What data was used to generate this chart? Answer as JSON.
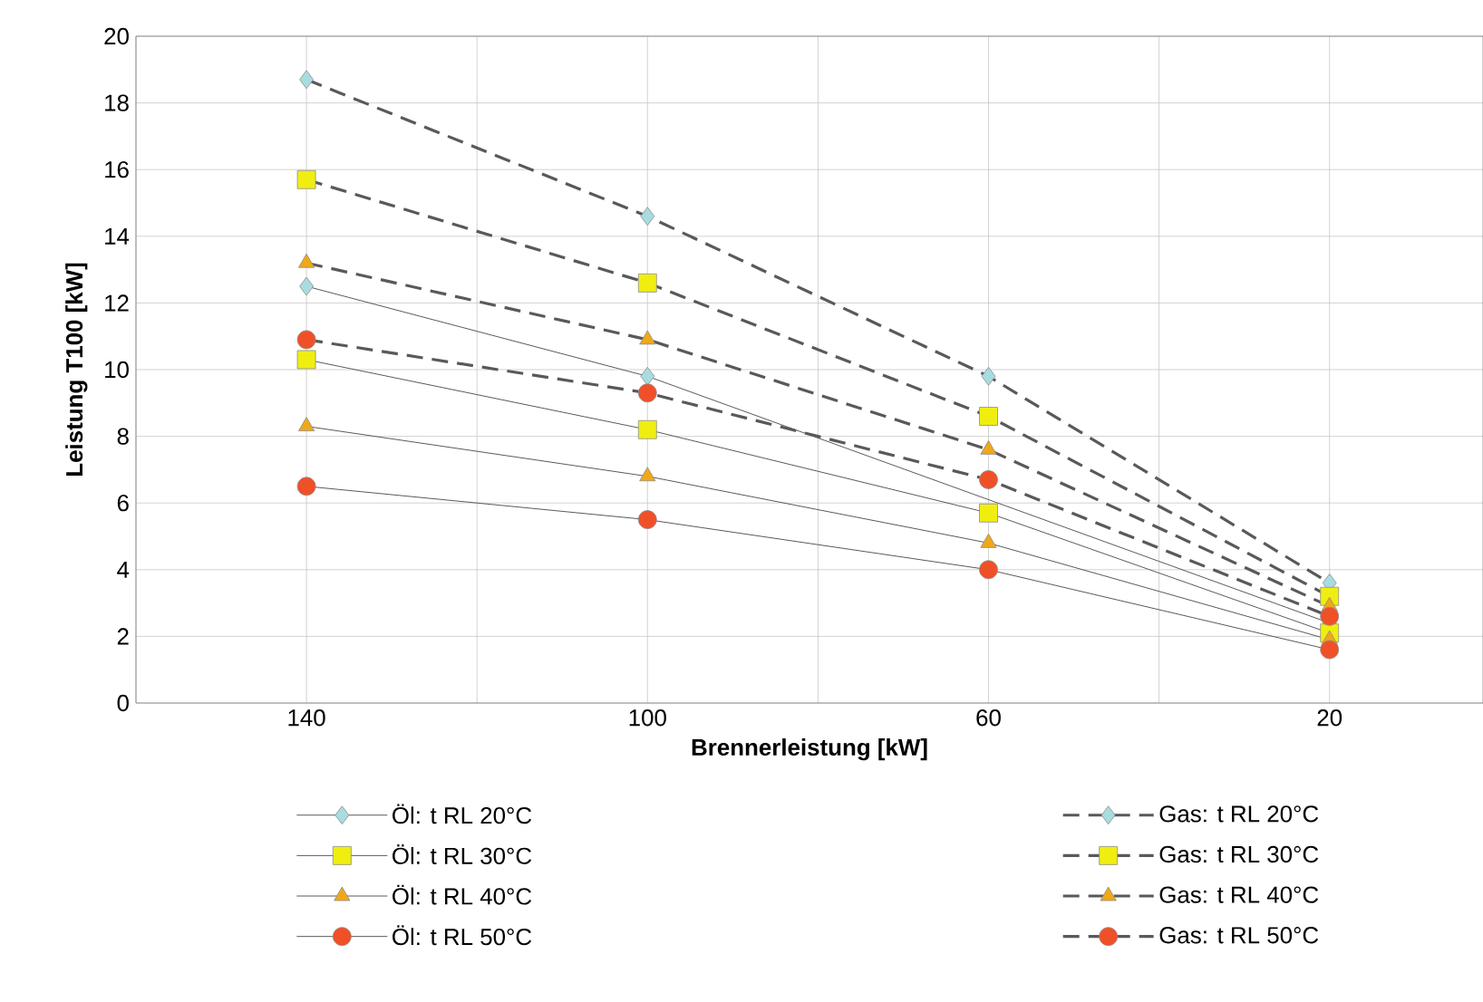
{
  "chart_data": {
    "type": "line",
    "xlabel": "Brennerleistung [kW]",
    "ylabel": "Leistung T100 [kW]",
    "x": [
      140,
      100,
      60,
      20
    ],
    "xlim": [
      160,
      2
    ],
    "xticks": [
      {
        "value": 160,
        "label": null
      },
      140,
      {
        "value": 120,
        "label": null
      },
      100,
      {
        "value": 80,
        "label": null
      },
      60,
      {
        "value": 40,
        "label": null
      },
      20
    ],
    "ylim": [
      0,
      20
    ],
    "yticks": [
      0,
      2,
      4,
      6,
      8,
      10,
      12,
      14,
      16,
      18,
      20
    ],
    "grid": true,
    "legend": "bottom",
    "series": [
      {
        "name": "Öl: t RL 20°C",
        "color": "#a8dce0",
        "marker": "diamond",
        "line_style": "solid",
        "values": [
          12.5,
          9.8,
          null,
          2.4
        ]
      },
      {
        "name": "Öl: t RL 30°C",
        "color": "#f0ee10",
        "marker": "square",
        "line_style": "solid",
        "values": [
          10.3,
          8.2,
          5.7,
          2.1
        ]
      },
      {
        "name": "Öl: t RL 40°C",
        "color": "#f0a818",
        "marker": "triangle",
        "line_style": "solid",
        "values": [
          8.3,
          6.8,
          4.8,
          1.9
        ]
      },
      {
        "name": "Öl: t RL 50°C",
        "color": "#f05028",
        "marker": "circle",
        "line_style": "solid",
        "values": [
          6.5,
          5.5,
          4.0,
          1.6
        ]
      },
      {
        "name": "Gas: t RL 20°C",
        "color": "#a8dce0",
        "marker": "diamond",
        "line_style": "dashed",
        "values": [
          18.7,
          14.6,
          9.8,
          3.6
        ]
      },
      {
        "name": "Gas: t RL 30°C",
        "color": "#f0ee10",
        "marker": "square",
        "line_style": "dashed",
        "values": [
          15.7,
          12.6,
          8.6,
          3.2
        ]
      },
      {
        "name": "Gas: t RL 40°C",
        "color": "#f0a818",
        "marker": "triangle",
        "line_style": "dashed",
        "values": [
          13.2,
          10.9,
          7.6,
          2.9
        ]
      },
      {
        "name": "Gas: t RL 50°C",
        "color": "#f05028",
        "marker": "circle",
        "line_style": "dashed",
        "values": [
          10.9,
          9.3,
          6.7,
          2.6
        ]
      }
    ]
  }
}
